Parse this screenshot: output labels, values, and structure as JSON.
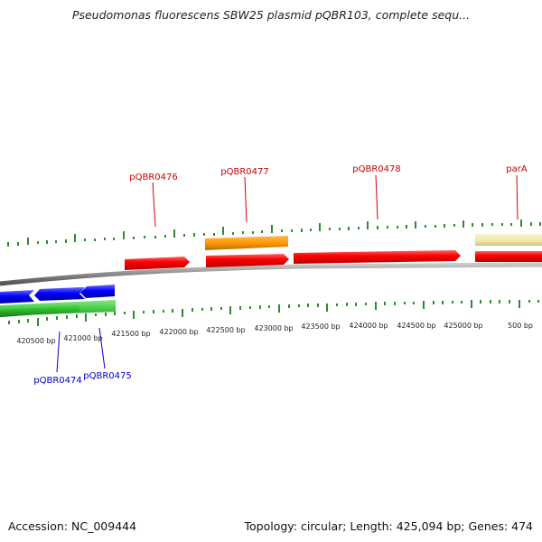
{
  "title": "Pseudomonas fluorescens SBW25 plasmid pQBR103, complete sequ...",
  "accession": "Accession: NC_009444",
  "summary": "Topology: circular; Length: 425,094 bp; Genes: 474",
  "colors": {
    "backbone": "#888888",
    "tick": "#2e8b2e",
    "forward_gene": "#ff0000",
    "reverse_gene": "#0000ff",
    "orange_gene": "#ff9900",
    "pale_gene": "#eee8aa",
    "green_gene": "#33cc33",
    "top_label": "#cc0000",
    "bottom_label": "#0000cc"
  },
  "top_labels": [
    "pQBR0476",
    "pQBR0477",
    "pQBR0478",
    "parA"
  ],
  "bottom_labels": [
    "pQBR0474",
    "pQBR0475"
  ],
  "ruler_labels": [
    "420500 bp",
    "421000 bp",
    "421500 bp",
    "422000 bp",
    "422500 bp",
    "423000 bp",
    "423500 bp",
    "424000 bp",
    "424500 bp",
    "425000 bp",
    "500 bp"
  ]
}
